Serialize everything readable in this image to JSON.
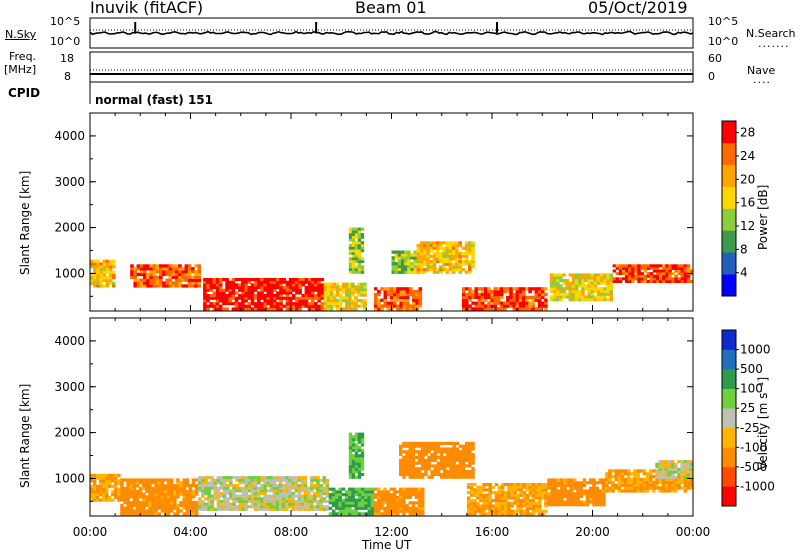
{
  "header": {
    "station": "Inuvik (fitACF)",
    "beam": "Beam 01",
    "date": "05/Oct/2019"
  },
  "strip_panels": {
    "nsky_label": "N.Sky",
    "nsky_ticks": [
      "10^5",
      "10^0"
    ],
    "nsearch_label": "N.Search",
    "nsearch_ticks": [
      "10^5",
      "10^0"
    ],
    "freq_label": "Freq.",
    "freq_unit": "[MHz]",
    "freq_ticks": [
      "18",
      "8"
    ],
    "nave_label": "Nave",
    "nave_ticks": [
      "60",
      "0"
    ],
    "cpid_label": "CPID",
    "cpid_value": "normal (fast) 151"
  },
  "colors": {
    "power": [
      "#0000ff",
      "#1f5fbf",
      "#3c9a4b",
      "#8ccd3c",
      "#ffd700",
      "#ffa500",
      "#ff6a00",
      "#ff0000"
    ],
    "velocity": [
      "#ff0000",
      "#ff4a00",
      "#ff8c00",
      "#ffb400",
      "#bfbfb3",
      "#6fd03f",
      "#2e9a4b",
      "#1f6fbf",
      "#1028d0"
    ],
    "ground_scatter": "#bfbfb3"
  },
  "chart_data": [
    {
      "type": "heatmap",
      "panel": "power",
      "ylabel": "Slant Range [km]",
      "xlabel": "",
      "ylim": [
        180,
        4500
      ],
      "yticks": [
        "1000",
        "2000",
        "3000",
        "4000"
      ],
      "ytick_values": [
        1000,
        2000,
        3000,
        4000
      ],
      "xlim": [
        0,
        24
      ],
      "colorbar_label": "Power [dB]",
      "colorbar_ticks": [
        "4",
        "8",
        "12",
        "16",
        "20",
        "24",
        "28"
      ],
      "colorbar_range": [
        0,
        30
      ],
      "regions": [
        {
          "t0": 0.0,
          "t1": 1.0,
          "r0": 700,
          "r1": 1300,
          "value": 20
        },
        {
          "t0": 1.6,
          "t1": 4.4,
          "r0": 700,
          "r1": 1200,
          "value": 26
        },
        {
          "t0": 4.5,
          "t1": 9.3,
          "r0": 200,
          "r1": 900,
          "value": 30
        },
        {
          "t0": 9.3,
          "t1": 11.0,
          "r0": 200,
          "r1": 800,
          "value": 18
        },
        {
          "t0": 10.3,
          "t1": 10.9,
          "r0": 1000,
          "r1": 2000,
          "value": 14
        },
        {
          "t0": 11.3,
          "t1": 13.2,
          "r0": 200,
          "r1": 700,
          "value": 26
        },
        {
          "t0": 12.0,
          "t1": 13.0,
          "r0": 1000,
          "r1": 1500,
          "value": 14
        },
        {
          "t0": 13.0,
          "t1": 15.3,
          "r0": 1000,
          "r1": 1700,
          "value": 20
        },
        {
          "t0": 14.8,
          "t1": 18.2,
          "r0": 200,
          "r1": 700,
          "value": 28
        },
        {
          "t0": 18.3,
          "t1": 20.8,
          "r0": 400,
          "r1": 1000,
          "value": 18
        },
        {
          "t0": 20.8,
          "t1": 24.0,
          "r0": 800,
          "r1": 1200,
          "value": 28
        }
      ]
    },
    {
      "type": "heatmap",
      "panel": "velocity",
      "ylabel": "Slant Range [km]",
      "xlabel": "Time UT",
      "ylim": [
        180,
        4500
      ],
      "yticks": [
        "1000",
        "2000",
        "3000",
        "4000"
      ],
      "ytick_values": [
        1000,
        2000,
        3000,
        4000
      ],
      "xlim": [
        0,
        24
      ],
      "xticks": [
        "00:00",
        "04:00",
        "08:00",
        "12:00",
        "16:00",
        "20:00",
        "00:00"
      ],
      "xtick_values": [
        0,
        4,
        8,
        12,
        16,
        20,
        24
      ],
      "colorbar_label": "Velocity [m s⁻¹]",
      "colorbar_ticks": [
        "1000",
        "500",
        "100",
        "25",
        "-25",
        "-100",
        "-500",
        "-1000"
      ],
      "regions": [
        {
          "t0": 0.0,
          "t1": 1.2,
          "r0": 500,
          "r1": 1100,
          "value": -100
        },
        {
          "t0": 1.2,
          "t1": 4.3,
          "r0": 200,
          "r1": 1000,
          "value": -150
        },
        {
          "t0": 4.3,
          "t1": 9.5,
          "r0": 300,
          "r1": 1050,
          "value": 0
        },
        {
          "t0": 9.5,
          "t1": 11.3,
          "r0": 200,
          "r1": 800,
          "value": 100
        },
        {
          "t0": 10.3,
          "t1": 10.9,
          "r0": 1000,
          "r1": 2000,
          "value": 100
        },
        {
          "t0": 11.3,
          "t1": 13.3,
          "r0": 200,
          "r1": 800,
          "value": -150
        },
        {
          "t0": 12.3,
          "t1": 15.3,
          "r0": 1000,
          "r1": 1800,
          "value": -200
        },
        {
          "t0": 15.0,
          "t1": 18.2,
          "r0": 200,
          "r1": 900,
          "value": -100
        },
        {
          "t0": 18.2,
          "t1": 20.5,
          "r0": 400,
          "r1": 1000,
          "value": -150
        },
        {
          "t0": 20.5,
          "t1": 24.0,
          "r0": 700,
          "r1": 1200,
          "value": -100
        },
        {
          "t0": 22.5,
          "t1": 24.0,
          "r0": 1000,
          "r1": 1400,
          "value": 0
        }
      ]
    }
  ]
}
